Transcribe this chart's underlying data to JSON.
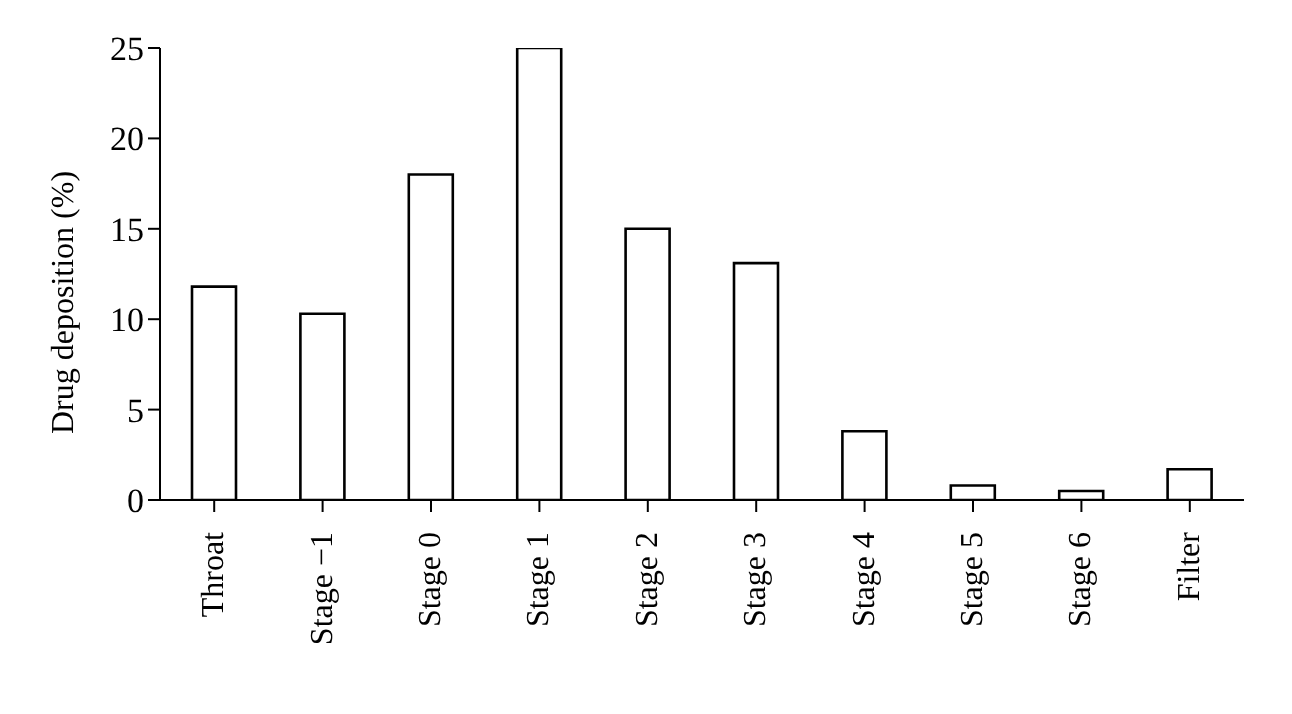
{
  "chart_data": {
    "type": "bar",
    "ylabel": "Drug deposition (%)",
    "categories": [
      "Throat",
      "Stage −1",
      "Stage 0",
      "Stage 1",
      "Stage 2",
      "Stage 3",
      "Stage 4",
      "Stage 5",
      "Stage 6",
      "Filter"
    ],
    "values": [
      11.8,
      10.3,
      18.0,
      25.0,
      15.0,
      13.1,
      3.8,
      0.8,
      0.5,
      1.7
    ],
    "color": "#ffffff",
    "ylim": [
      0,
      25
    ],
    "yticks": [
      0,
      5,
      10,
      15,
      20,
      25
    ],
    "grid": false,
    "legend": false
  }
}
